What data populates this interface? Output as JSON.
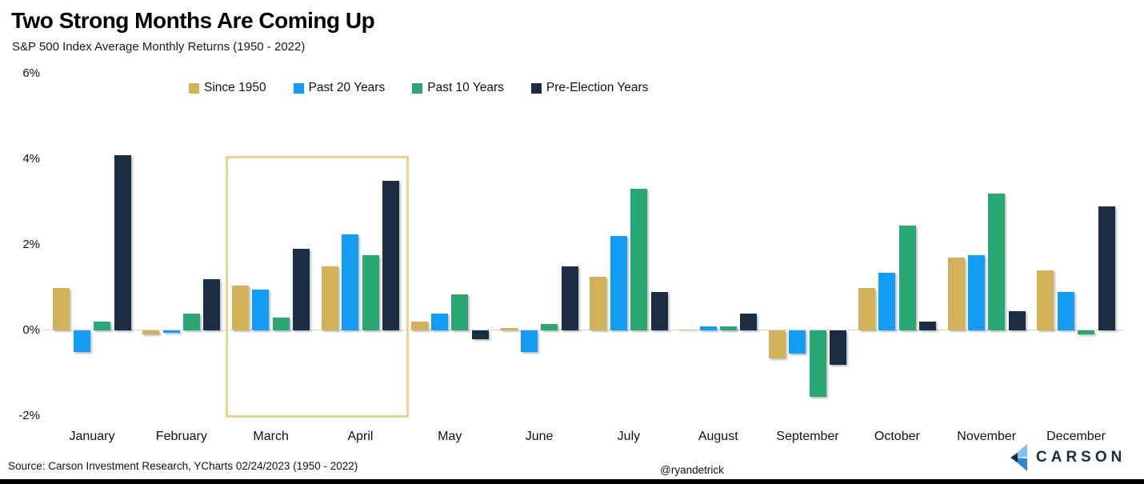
{
  "header": {
    "title": "Two Strong Months Are Coming Up",
    "subtitle": "S&P 500 Index Average Monthly Returns (1950 - 2022)"
  },
  "chart_data": {
    "type": "bar",
    "title": "Two Strong Months Are Coming Up",
    "subtitle": "S&P 500 Index Average Monthly Returns (1950 - 2022)",
    "categories": [
      "January",
      "February",
      "March",
      "April",
      "May",
      "June",
      "July",
      "August",
      "September",
      "October",
      "November",
      "December"
    ],
    "series": [
      {
        "name": "Since 1950",
        "color": "#d2b158",
        "values": [
          1.0,
          -0.1,
          1.05,
          1.5,
          0.2,
          0.05,
          1.25,
          0.02,
          -0.65,
          1.0,
          1.7,
          1.4
        ]
      },
      {
        "name": "Past 20 Years",
        "color": "#129cf4",
        "values": [
          -0.5,
          -0.05,
          0.95,
          2.25,
          0.4,
          -0.5,
          2.2,
          0.1,
          -0.55,
          1.35,
          1.75,
          0.9
        ]
      },
      {
        "name": "Past 10 Years",
        "color": "#2aa873",
        "values": [
          0.2,
          0.4,
          0.3,
          1.75,
          0.85,
          0.15,
          3.3,
          0.1,
          -1.55,
          2.45,
          3.2,
          -0.1
        ]
      },
      {
        "name": "Pre-Election Years",
        "color": "#1b2d42",
        "values": [
          4.1,
          1.2,
          1.9,
          3.5,
          -0.2,
          1.5,
          0.9,
          0.4,
          -0.8,
          0.2,
          0.45,
          2.9
        ]
      }
    ],
    "xlabel": "",
    "ylabel": "",
    "y_ticks": [
      {
        "label": "6%",
        "value": 6
      },
      {
        "label": "4%",
        "value": 4
      },
      {
        "label": "2%",
        "value": 2
      },
      {
        "label": "0%",
        "value": 0
      },
      {
        "label": "-2%",
        "value": -2
      }
    ],
    "ylim": [
      -2.5,
      6
    ],
    "grid": "zero-line-only",
    "legend_position": "top",
    "highlight": {
      "months": [
        "March",
        "April"
      ],
      "border_color": "#ecd28e"
    }
  },
  "footer": {
    "source": "Source: Carson Investment Research, YCharts 02/24/2023 (1950 - 2022)",
    "handle": "@ryandetrick",
    "logo_text": "CARSON"
  }
}
